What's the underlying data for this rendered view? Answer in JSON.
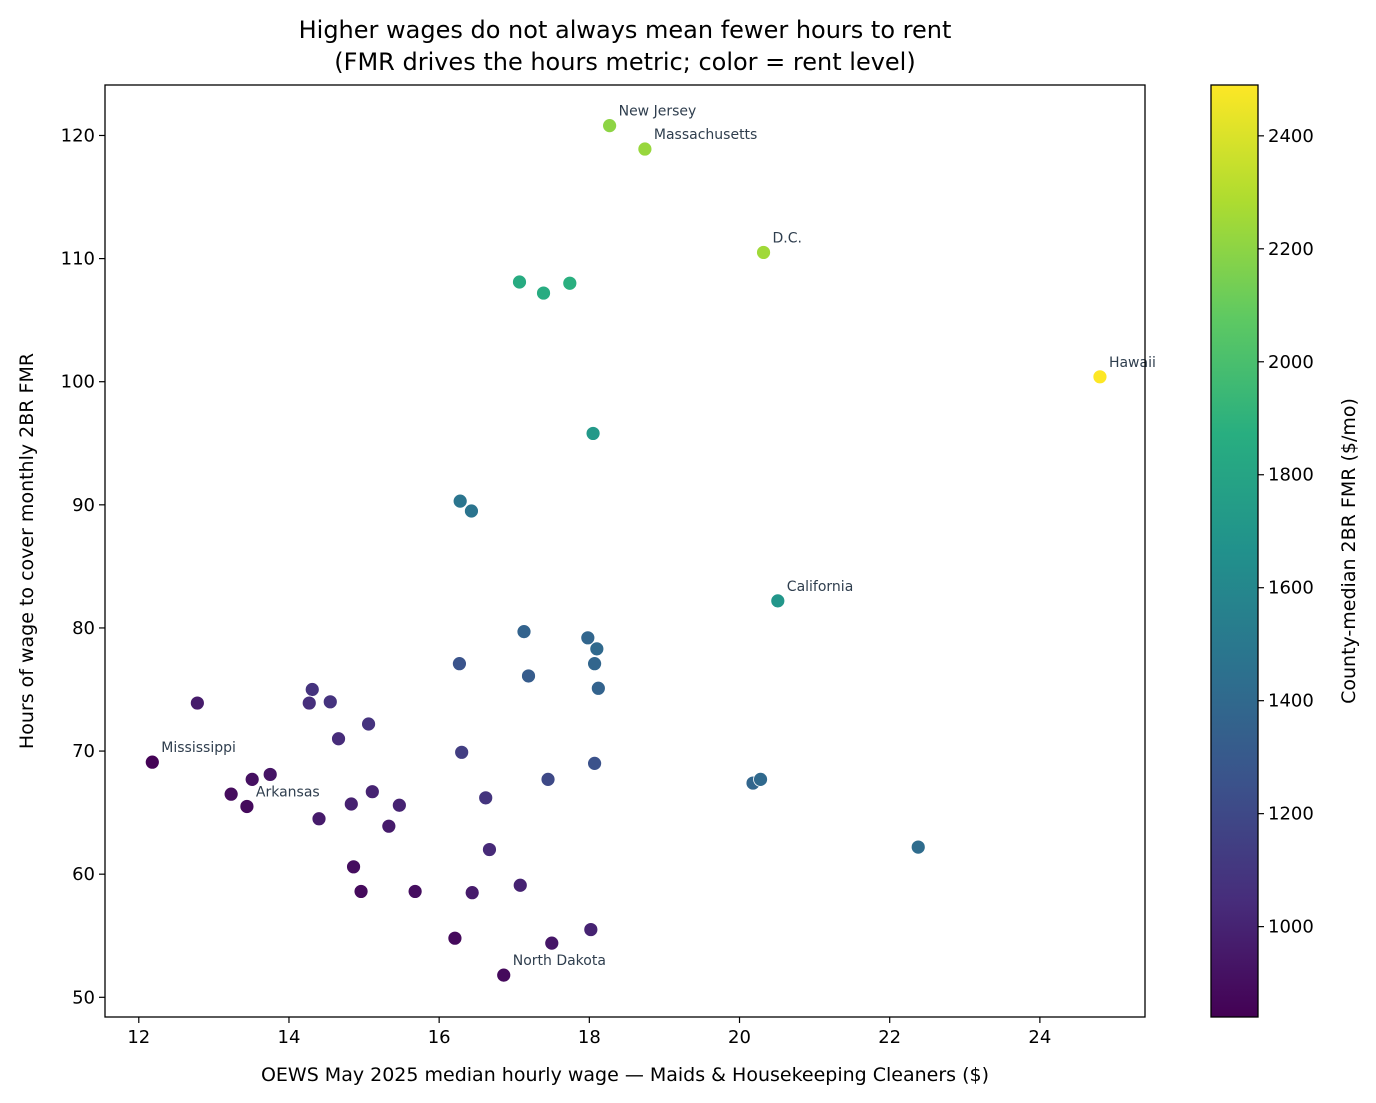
{
  "chart_data": {
    "type": "scatter",
    "title": "Higher wages do not always mean fewer hours to rent",
    "subtitle": "(FMR drives the hours metric; color = rent level)",
    "xlabel": "OEWS May 2025 median hourly wage — Maids & Housekeeping Cleaners ($)",
    "ylabel": "Hours of wage to cover monthly 2BR FMR",
    "xlim": [
      11.55,
      25.4
    ],
    "ylim": [
      48.4,
      124.1
    ],
    "xticks": [
      12,
      14,
      16,
      18,
      20,
      22,
      24
    ],
    "yticks": [
      50,
      60,
      70,
      80,
      90,
      100,
      110,
      120
    ],
    "grid": false,
    "colorbar": {
      "label": "County-median 2BR FMR ($/mo)",
      "range": [
        840,
        2490
      ],
      "ticks": [
        1000,
        1200,
        1400,
        1600,
        1800,
        2000,
        2200,
        2400
      ],
      "colormap": "viridis"
    },
    "points": [
      {
        "x": 24.8,
        "y": 100.4,
        "c": 2490,
        "label": "Hawaii"
      },
      {
        "x": 18.27,
        "y": 120.8,
        "c": 2200,
        "label": "New Jersey"
      },
      {
        "x": 18.74,
        "y": 118.9,
        "c": 2230,
        "label": "Massachusetts"
      },
      {
        "x": 20.32,
        "y": 110.5,
        "c": 2250,
        "label": "D.C."
      },
      {
        "x": 20.51,
        "y": 82.2,
        "c": 1700,
        "label": "California"
      },
      {
        "x": 12.18,
        "y": 69.1,
        "c": 850,
        "label": "Mississippi"
      },
      {
        "x": 13.44,
        "y": 65.5,
        "c": 880,
        "label": "Arkansas"
      },
      {
        "x": 16.86,
        "y": 51.8,
        "c": 880,
        "label": "North Dakota"
      },
      {
        "x": 17.07,
        "y": 108.1,
        "c": 1850
      },
      {
        "x": 17.39,
        "y": 107.2,
        "c": 1860
      },
      {
        "x": 17.74,
        "y": 108.0,
        "c": 1880
      },
      {
        "x": 18.05,
        "y": 95.8,
        "c": 1720
      },
      {
        "x": 16.28,
        "y": 90.3,
        "c": 1480
      },
      {
        "x": 16.43,
        "y": 89.5,
        "c": 1470
      },
      {
        "x": 17.13,
        "y": 79.7,
        "c": 1360
      },
      {
        "x": 17.98,
        "y": 79.2,
        "c": 1380
      },
      {
        "x": 18.1,
        "y": 78.3,
        "c": 1400
      },
      {
        "x": 18.07,
        "y": 77.1,
        "c": 1380
      },
      {
        "x": 16.27,
        "y": 77.1,
        "c": 1260
      },
      {
        "x": 17.19,
        "y": 76.1,
        "c": 1320
      },
      {
        "x": 18.12,
        "y": 75.1,
        "c": 1360
      },
      {
        "x": 12.78,
        "y": 73.9,
        "c": 960
      },
      {
        "x": 14.31,
        "y": 75.0,
        "c": 1080
      },
      {
        "x": 14.27,
        "y": 73.9,
        "c": 1060
      },
      {
        "x": 14.55,
        "y": 74.0,
        "c": 1080
      },
      {
        "x": 15.06,
        "y": 72.2,
        "c": 1080
      },
      {
        "x": 14.66,
        "y": 71.0,
        "c": 1040
      },
      {
        "x": 16.3,
        "y": 69.9,
        "c": 1140
      },
      {
        "x": 18.07,
        "y": 69.0,
        "c": 1250
      },
      {
        "x": 17.45,
        "y": 67.7,
        "c": 1200
      },
      {
        "x": 20.18,
        "y": 67.4,
        "c": 1380
      },
      {
        "x": 20.28,
        "y": 67.7,
        "c": 1400
      },
      {
        "x": 22.38,
        "y": 62.2,
        "c": 1420
      },
      {
        "x": 13.51,
        "y": 67.7,
        "c": 910
      },
      {
        "x": 13.75,
        "y": 68.1,
        "c": 930
      },
      {
        "x": 13.23,
        "y": 66.5,
        "c": 890
      },
      {
        "x": 15.11,
        "y": 66.7,
        "c": 1000
      },
      {
        "x": 14.83,
        "y": 65.7,
        "c": 990
      },
      {
        "x": 15.47,
        "y": 65.6,
        "c": 1000
      },
      {
        "x": 16.62,
        "y": 66.2,
        "c": 1090
      },
      {
        "x": 14.4,
        "y": 64.5,
        "c": 960
      },
      {
        "x": 15.33,
        "y": 63.9,
        "c": 960
      },
      {
        "x": 16.67,
        "y": 62.0,
        "c": 1030
      },
      {
        "x": 14.86,
        "y": 60.6,
        "c": 900
      },
      {
        "x": 14.96,
        "y": 58.6,
        "c": 880
      },
      {
        "x": 15.68,
        "y": 58.6,
        "c": 900
      },
      {
        "x": 16.44,
        "y": 58.5,
        "c": 960
      },
      {
        "x": 17.08,
        "y": 59.1,
        "c": 1000
      },
      {
        "x": 16.21,
        "y": 54.8,
        "c": 880
      },
      {
        "x": 17.5,
        "y": 54.4,
        "c": 940
      },
      {
        "x": 18.02,
        "y": 55.5,
        "c": 1000
      }
    ]
  }
}
